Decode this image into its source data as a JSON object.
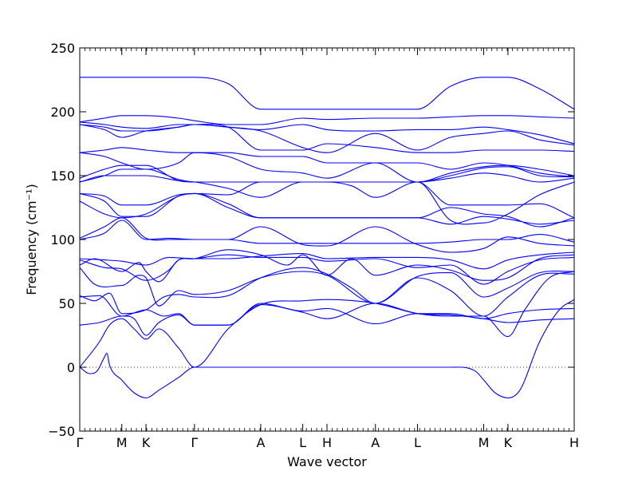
{
  "chart_data": {
    "type": "line",
    "title": "",
    "xlabel": "Wave vector",
    "ylabel": "Frequency (cm⁻¹)",
    "ylim": [
      -50,
      250
    ],
    "yticks": [
      -50,
      0,
      50,
      100,
      150,
      200,
      250
    ],
    "line_color": "#0000ff",
    "zero_line": {
      "value": 0,
      "style": "dotted",
      "color": "#000000"
    },
    "high_symmetry_points": [
      {
        "label": "Γ",
        "q": 0.0
      },
      {
        "label": "M",
        "q": 0.085
      },
      {
        "label": "K",
        "q": 0.134
      },
      {
        "label": "Γ",
        "q": 0.232
      },
      {
        "label": "A",
        "q": 0.366
      },
      {
        "label": "L",
        "q": 0.451
      },
      {
        "label": "H",
        "q": 0.5
      },
      {
        "label": "A",
        "q": 0.598
      },
      {
        "label": "L",
        "q": 0.683
      },
      {
        "label": "M",
        "q": 0.817
      },
      {
        "label": "K",
        "q": 0.866
      },
      {
        "label": "H",
        "q": 1.0
      }
    ],
    "series": [
      {
        "x": [
          0,
          0.02,
          0.035,
          0.05,
          0.055,
          0.06,
          0.085,
          0.11,
          0.134,
          0.16,
          0.2,
          0.232,
          0.3,
          0.366,
          0.451,
          0.5,
          0.598,
          0.683,
          0.75,
          0.8,
          0.817,
          0.84,
          0.866,
          0.89,
          0.93,
          0.97,
          1.0
        ],
        "y": [
          0,
          -5,
          -3,
          8,
          11,
          2,
          -10,
          -20,
          -24,
          -18,
          -8,
          0,
          0,
          0,
          0,
          0,
          0,
          0,
          0,
          -3,
          -10,
          -20,
          -24,
          -18,
          20,
          45,
          53
        ]
      },
      {
        "x": [
          0,
          0.04,
          0.06,
          0.085,
          0.11,
          0.134,
          0.16,
          0.2,
          0.232,
          0.3,
          0.366,
          0.451,
          0.5,
          0.598,
          0.683,
          0.75,
          0.817,
          0.866,
          0.9,
          0.95,
          1.0
        ],
        "y": [
          0,
          20,
          33,
          38,
          30,
          22,
          30,
          15,
          0,
          30,
          49,
          52,
          53,
          50,
          42,
          40,
          40,
          24,
          45,
          70,
          75
        ]
      },
      {
        "x": [
          0,
          0.04,
          0.085,
          0.11,
          0.134,
          0.16,
          0.2,
          0.232,
          0.3,
          0.366,
          0.451,
          0.5,
          0.598,
          0.683,
          0.75,
          0.817,
          0.866,
          0.93,
          1.0
        ],
        "y": [
          33,
          35,
          40,
          38,
          25,
          35,
          41,
          33,
          33,
          49,
          43,
          38,
          50,
          42,
          41,
          38,
          35,
          37,
          38
        ]
      },
      {
        "x": [
          0,
          0.04,
          0.085,
          0.134,
          0.17,
          0.2,
          0.232,
          0.3,
          0.366,
          0.451,
          0.5,
          0.598,
          0.683,
          0.75,
          0.817,
          0.866,
          0.93,
          1.0
        ],
        "y": [
          55,
          56,
          40,
          45,
          40,
          42,
          33,
          33,
          50,
          44,
          46,
          34,
          42,
          42,
          38,
          42,
          45,
          46
        ]
      },
      {
        "x": [
          0,
          0.03,
          0.06,
          0.085,
          0.134,
          0.17,
          0.2,
          0.232,
          0.3,
          0.366,
          0.451,
          0.5,
          0.55,
          0.598,
          0.683,
          0.75,
          0.817,
          0.866,
          0.93,
          1.0
        ],
        "y": [
          56,
          52,
          58,
          42,
          45,
          55,
          57,
          55,
          56,
          70,
          78,
          73,
          62,
          50,
          70,
          60,
          40,
          55,
          72,
          73
        ]
      },
      {
        "x": [
          0,
          0.03,
          0.085,
          0.12,
          0.134,
          0.16,
          0.2,
          0.232,
          0.3,
          0.366,
          0.451,
          0.5,
          0.598,
          0.683,
          0.75,
          0.817,
          0.866,
          0.93,
          1.0
        ],
        "y": [
          78,
          65,
          64,
          72,
          70,
          48,
          60,
          57,
          60,
          70,
          75,
          72,
          50,
          71,
          74,
          55,
          62,
          74,
          75
        ]
      },
      {
        "x": [
          0,
          0.03,
          0.085,
          0.12,
          0.134,
          0.16,
          0.2,
          0.232,
          0.3,
          0.366,
          0.451,
          0.5,
          0.598,
          0.683,
          0.75,
          0.817,
          0.866,
          0.93,
          1.0
        ],
        "y": [
          80,
          85,
          75,
          82,
          75,
          67,
          84,
          85,
          88,
          86,
          86,
          83,
          85,
          78,
          80,
          65,
          75,
          84,
          86
        ]
      },
      {
        "x": [
          0,
          0.05,
          0.085,
          0.134,
          0.18,
          0.2,
          0.232,
          0.3,
          0.366,
          0.42,
          0.451,
          0.5,
          0.55,
          0.598,
          0.683,
          0.75,
          0.817,
          0.866,
          0.93,
          1.0
        ],
        "y": [
          84,
          78,
          77,
          68,
          76,
          84,
          85,
          92,
          88,
          80,
          88,
          72,
          85,
          72,
          80,
          76,
          68,
          70,
          85,
          88
        ]
      },
      {
        "x": [
          0,
          0.05,
          0.085,
          0.134,
          0.18,
          0.232,
          0.3,
          0.366,
          0.451,
          0.5,
          0.598,
          0.683,
          0.75,
          0.817,
          0.866,
          0.93,
          1.0
        ],
        "y": [
          85,
          84,
          83,
          80,
          86,
          85,
          85,
          87,
          89,
          85,
          86,
          86,
          84,
          77,
          84,
          88,
          90
        ]
      },
      {
        "x": [
          0,
          0.05,
          0.085,
          0.134,
          0.18,
          0.232,
          0.3,
          0.366,
          0.451,
          0.5,
          0.598,
          0.683,
          0.75,
          0.817,
          0.866,
          0.93,
          1.0
        ],
        "y": [
          100,
          105,
          115,
          100,
          101,
          100,
          100,
          110,
          96,
          95,
          110,
          96,
          90,
          93,
          102,
          97,
          95
        ]
      },
      {
        "x": [
          0,
          0.05,
          0.085,
          0.134,
          0.18,
          0.232,
          0.3,
          0.366,
          0.451,
          0.5,
          0.598,
          0.683,
          0.75,
          0.817,
          0.866,
          0.93,
          1.0
        ],
        "y": [
          101,
          110,
          117,
          101,
          100,
          100,
          100,
          97,
          97,
          97,
          97,
          97,
          98,
          100,
          100,
          104,
          98
        ]
      },
      {
        "x": [
          0,
          0.05,
          0.085,
          0.134,
          0.2,
          0.232,
          0.3,
          0.366,
          0.451,
          0.5,
          0.598,
          0.683,
          0.75,
          0.817,
          0.866,
          0.93,
          1.0
        ],
        "y": [
          130,
          120,
          117,
          120,
          134,
          136,
          125,
          117,
          117,
          117,
          117,
          117,
          112,
          118,
          116,
          112,
          115
        ]
      },
      {
        "x": [
          0,
          0.05,
          0.085,
          0.134,
          0.2,
          0.232,
          0.3,
          0.366,
          0.451,
          0.5,
          0.598,
          0.683,
          0.75,
          0.817,
          0.866,
          0.93,
          1.0
        ],
        "y": [
          136,
          130,
          118,
          118,
          134,
          136,
          128,
          117,
          117,
          117,
          117,
          117,
          125,
          120,
          118,
          110,
          117
        ]
      },
      {
        "x": [
          0,
          0.05,
          0.085,
          0.134,
          0.2,
          0.232,
          0.3,
          0.366,
          0.451,
          0.5,
          0.598,
          0.683,
          0.75,
          0.817,
          0.866,
          0.93,
          1.0
        ],
        "y": [
          136,
          134,
          127,
          127,
          135,
          136,
          135,
          145,
          145,
          145,
          145,
          145,
          127,
          127,
          127,
          128,
          117
        ]
      },
      {
        "x": [
          0,
          0.05,
          0.085,
          0.134,
          0.2,
          0.232,
          0.3,
          0.366,
          0.451,
          0.5,
          0.55,
          0.598,
          0.683,
          0.75,
          0.817,
          0.866,
          0.93,
          1.0
        ],
        "y": [
          145,
          150,
          150,
          150,
          146,
          145,
          140,
          133,
          145,
          145,
          142,
          133,
          145,
          115,
          113,
          120,
          135,
          145
        ]
      },
      {
        "x": [
          0,
          0.05,
          0.085,
          0.134,
          0.2,
          0.232,
          0.3,
          0.366,
          0.451,
          0.5,
          0.598,
          0.683,
          0.75,
          0.817,
          0.866,
          0.93,
          1.0
        ],
        "y": [
          145,
          150,
          155,
          155,
          147,
          145,
          145,
          145,
          145,
          145,
          145,
          145,
          148,
          152,
          150,
          145,
          148
        ]
      },
      {
        "x": [
          0,
          0.05,
          0.085,
          0.134,
          0.2,
          0.232,
          0.3,
          0.366,
          0.451,
          0.5,
          0.598,
          0.683,
          0.75,
          0.817,
          0.866,
          0.93,
          1.0
        ],
        "y": [
          148,
          155,
          158,
          158,
          146,
          145,
          145,
          145,
          145,
          145,
          145,
          145,
          150,
          156,
          157,
          150,
          149
        ]
      },
      {
        "x": [
          0,
          0.05,
          0.085,
          0.134,
          0.2,
          0.232,
          0.3,
          0.366,
          0.451,
          0.5,
          0.598,
          0.683,
          0.75,
          0.817,
          0.866,
          0.93,
          1.0
        ],
        "y": [
          168,
          165,
          160,
          155,
          160,
          168,
          165,
          155,
          152,
          148,
          160,
          145,
          152,
          157,
          158,
          155,
          150
        ]
      },
      {
        "x": [
          0,
          0.05,
          0.085,
          0.134,
          0.2,
          0.232,
          0.3,
          0.366,
          0.451,
          0.5,
          0.598,
          0.683,
          0.75,
          0.817,
          0.866,
          0.93,
          1.0
        ],
        "y": [
          168,
          170,
          172,
          170,
          168,
          168,
          168,
          165,
          165,
          160,
          160,
          160,
          155,
          160,
          158,
          152,
          149
        ]
      },
      {
        "x": [
          0,
          0.05,
          0.085,
          0.134,
          0.2,
          0.232,
          0.3,
          0.366,
          0.451,
          0.5,
          0.598,
          0.683,
          0.75,
          0.817,
          0.866,
          0.93,
          1.0
        ],
        "y": [
          190,
          186,
          180,
          185,
          188,
          190,
          188,
          170,
          170,
          175,
          172,
          168,
          168,
          170,
          170,
          170,
          169
        ]
      },
      {
        "x": [
          0,
          0.05,
          0.085,
          0.134,
          0.2,
          0.232,
          0.3,
          0.366,
          0.451,
          0.5,
          0.598,
          0.683,
          0.75,
          0.817,
          0.866,
          0.93,
          1.0
        ],
        "y": [
          190,
          188,
          185,
          185,
          188,
          190,
          188,
          185,
          172,
          168,
          183,
          170,
          180,
          183,
          185,
          178,
          174
        ]
      },
      {
        "x": [
          0,
          0.05,
          0.085,
          0.134,
          0.2,
          0.232,
          0.3,
          0.366,
          0.451,
          0.5,
          0.598,
          0.683,
          0.75,
          0.817,
          0.866,
          0.93,
          1.0
        ],
        "y": [
          192,
          190,
          188,
          187,
          190,
          190,
          188,
          186,
          190,
          186,
          185,
          186,
          186,
          188,
          186,
          182,
          175
        ]
      },
      {
        "x": [
          0,
          0.05,
          0.085,
          0.134,
          0.2,
          0.232,
          0.3,
          0.366,
          0.451,
          0.5,
          0.598,
          0.683,
          0.75,
          0.817,
          0.866,
          0.93,
          1.0
        ],
        "y": [
          192,
          195,
          197,
          197,
          195,
          193,
          190,
          190,
          195,
          194,
          195,
          195,
          196,
          197,
          197,
          196,
          195
        ]
      },
      {
        "x": [
          0,
          0.05,
          0.085,
          0.134,
          0.2,
          0.232,
          0.3,
          0.366,
          0.451,
          0.5,
          0.598,
          0.683,
          0.75,
          0.817,
          0.866,
          0.93,
          1.0
        ],
        "y": [
          227,
          227,
          227,
          227,
          227,
          227,
          222,
          202,
          202,
          202,
          202,
          202,
          220,
          227,
          227,
          218,
          202
        ]
      }
    ]
  }
}
